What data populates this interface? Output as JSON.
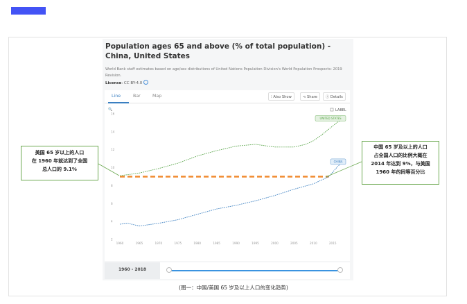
{
  "page": {
    "caption": "(图一：中国/美国 65 岁及以上人口的变化趋势)",
    "callout_left": [
      "美国 65 岁以上的人口",
      "在 1960 年就达到了全国",
      "总人口的 9.1%"
    ],
    "callout_right": [
      "中国 65 岁及以上的人口",
      "占全国人口的比例大概在",
      "2014 年达到 9%，与美国",
      "1960 年的同等百分比"
    ]
  },
  "panel": {
    "title": "Population ages 65 and above (% of total population) - China, United States",
    "description": "World Bank staff estimates based on age/sex distributions of United Nations Population Division's World Population Prospects: 2019 Revision.",
    "license_label": "License",
    "license_value": ": CC BY-4.0",
    "tabs": [
      "Line",
      "Bar",
      "Map"
    ],
    "buttons": {
      "also_show": "Also Show",
      "share": "Share",
      "details": "Details"
    },
    "label_toggle": "LABEL",
    "range_label": "1960 - 2018"
  },
  "colors": {
    "china": "#3a7fc1",
    "us": "#5aa64a",
    "ref_line": "#f08a2e",
    "callout_border": "#6aa84f"
  },
  "chart_data": {
    "type": "line",
    "title": "Population ages 65 and above (% of total population) - China, United States",
    "ylim": [
      2,
      16
    ],
    "xlim": [
      1960,
      2018
    ],
    "yticks": [
      2,
      4,
      6,
      8,
      10,
      12,
      14,
      16
    ],
    "xticks": [
      1960,
      1965,
      1970,
      1975,
      1980,
      1985,
      1990,
      1995,
      2000,
      2005,
      2010,
      2015
    ],
    "grid": false,
    "series": [
      {
        "name": "UNITED STATES",
        "x": [
          1960,
          1965,
          1970,
          1975,
          1980,
          1985,
          1990,
          1995,
          2000,
          2005,
          2008,
          2010,
          2012,
          2014,
          2016,
          2018
        ],
        "y": [
          9.1,
          9.4,
          9.9,
          10.5,
          11.3,
          11.9,
          12.4,
          12.6,
          12.3,
          12.3,
          12.6,
          13.0,
          13.6,
          14.3,
          15.0,
          15.5
        ]
      },
      {
        "name": "CHINA",
        "x": [
          1960,
          1962,
          1965,
          1970,
          1975,
          1980,
          1985,
          1990,
          1995,
          2000,
          2005,
          2010,
          2014,
          2016,
          2018
        ],
        "y": [
          3.7,
          3.8,
          3.5,
          3.8,
          4.2,
          4.8,
          5.4,
          5.8,
          6.3,
          6.9,
          7.6,
          8.2,
          9.0,
          10.0,
          10.9
        ]
      }
    ],
    "reference_line": {
      "y": 9.0,
      "x": [
        1960,
        2014
      ]
    }
  }
}
